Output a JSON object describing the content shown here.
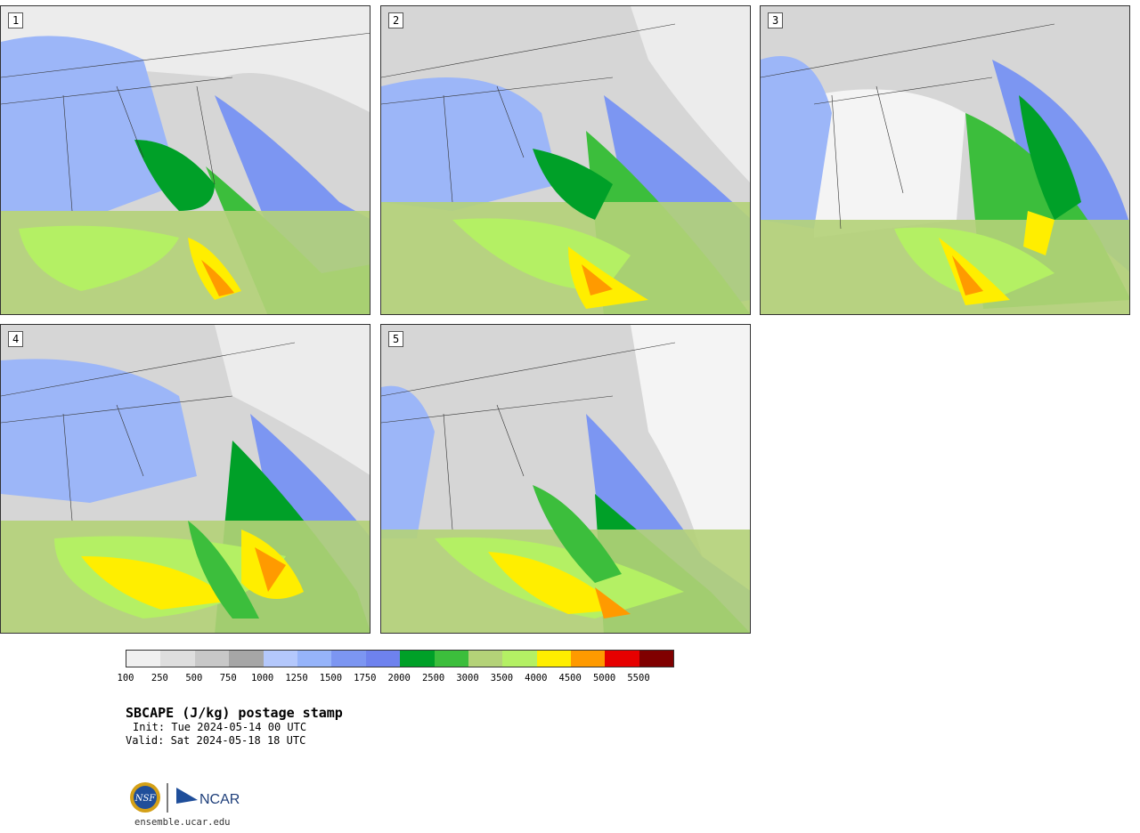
{
  "product": {
    "title": "SBCAPE (J/kg) postage stamp",
    "init": "Init: Tue 2024-05-14 00 UTC",
    "valid": "Valid: Sat 2024-05-18 18 UTC",
    "site": "ensemble.ucar.edu"
  },
  "members": [
    {
      "label": "1"
    },
    {
      "label": "2"
    },
    {
      "label": "3"
    },
    {
      "label": "4"
    },
    {
      "label": "5"
    }
  ],
  "colorbar": {
    "colors": [
      "#f0f0f0",
      "#dedede",
      "#c8c8c8",
      "#a6a6a6",
      "#b4c8fc",
      "#96b4fa",
      "#7c96f2",
      "#6e82ee",
      "#00a028",
      "#3cbe3c",
      "#b4d278",
      "#b4f064",
      "#ffee00",
      "#ff9a00",
      "#e60000",
      "#800000"
    ],
    "ticks": [
      "100",
      "250",
      "500",
      "750",
      "1000",
      "1250",
      "1500",
      "1750",
      "2000",
      "2500",
      "3000",
      "3500",
      "4000",
      "4500",
      "5000",
      "5500"
    ]
  },
  "logos": {
    "nsf": "NSF",
    "ncar": "NCAR"
  }
}
